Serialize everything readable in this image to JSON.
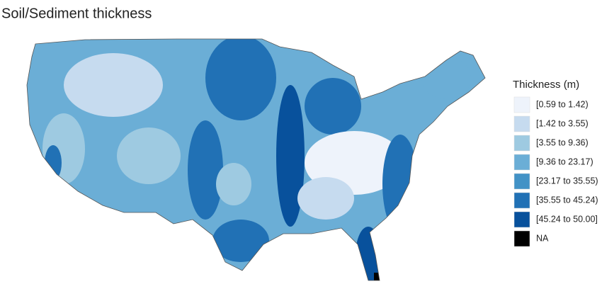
{
  "title": "Soil/Sediment thickness",
  "legend": {
    "title": "Thickness (m)",
    "items": [
      {
        "label": "[0.59 to 1.42)",
        "color": "#eef3fb"
      },
      {
        "label": "[1.42 to 3.55)",
        "color": "#c6dbef"
      },
      {
        "label": "[3.55 to 9.36)",
        "color": "#9ecae1"
      },
      {
        "label": "[9.36 to 23.17)",
        "color": "#6baed6"
      },
      {
        "label": "[23.17 to 35.55)",
        "color": "#4292c6"
      },
      {
        "label": "[35.55 to 45.24)",
        "color": "#2171b5"
      },
      {
        "label": "[45.24 to 50.00]",
        "color": "#08519c"
      },
      {
        "label": "NA",
        "color": "#000000"
      }
    ]
  }
}
